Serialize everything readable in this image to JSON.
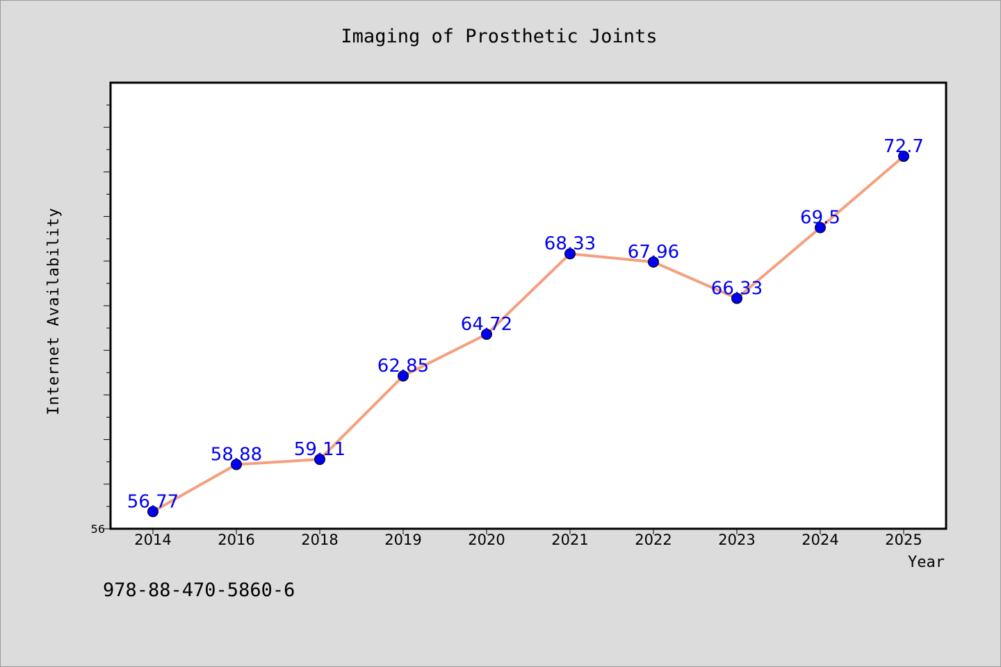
{
  "chart_data": {
    "type": "line",
    "title": "Imaging of Prosthetic Joints",
    "xlabel": "Year",
    "ylabel": "Internet Availability",
    "categories": [
      "2014",
      "2016",
      "2018",
      "2019",
      "2020",
      "2021",
      "2022",
      "2023",
      "2024",
      "2025"
    ],
    "series": [
      {
        "values": [
          56.77,
          58.88,
          59.11,
          62.85,
          64.72,
          68.33,
          67.96,
          66.33,
          69.5,
          72.7
        ],
        "labels": [
          "56.77",
          "58.88",
          "59.11",
          "62.85",
          "64.72",
          "68.33",
          "67.96",
          "66.33",
          "69.5",
          "72.7"
        ],
        "line_color": "#f4a07f",
        "marker_color": "#0000ee",
        "label_color": "#0000ee"
      }
    ],
    "ylim": [
      56,
      76
    ],
    "y_tick_labels": [
      "56"
    ],
    "grid": false,
    "legend": "none"
  },
  "footer": {
    "isbn": "978-88-470-5860-6"
  }
}
